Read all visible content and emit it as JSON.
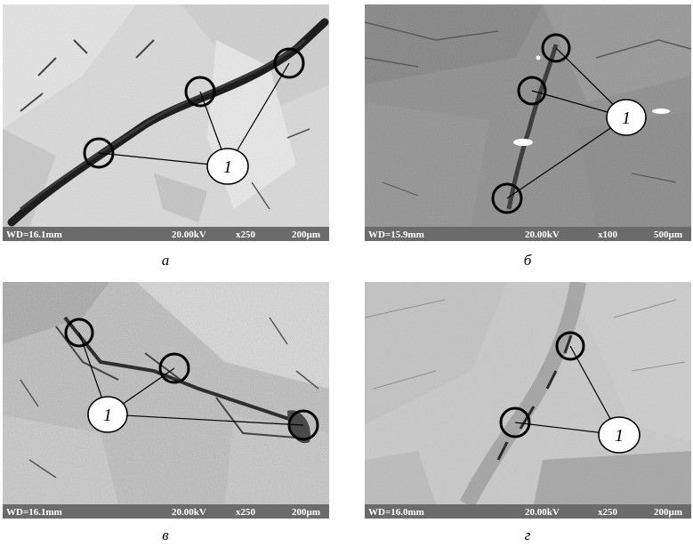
{
  "panels": [
    {
      "id": "a",
      "caption": "а",
      "marker_label": "1",
      "wd": "WD=16.1mm",
      "kv": "20.00kV",
      "mag": "x250",
      "scale": "200µm"
    },
    {
      "id": "b",
      "caption": "б",
      "marker_label": "1",
      "wd": "WD=15.9mm",
      "kv": "20.00kV",
      "mag": "x100",
      "scale": "500µm"
    },
    {
      "id": "v",
      "caption": "в",
      "marker_label": "1",
      "wd": "WD=16.1mm",
      "kv": "20.00kV",
      "mag": "x250",
      "scale": "200µm"
    },
    {
      "id": "g",
      "caption": "г",
      "marker_label": "1",
      "wd": "WD=16.0mm",
      "kv": "20.00kV",
      "mag": "x250",
      "scale": "200µm"
    }
  ],
  "colors": {
    "info_bar": "#6b6b6b",
    "info_text": "#ffffff",
    "marker_ring": "#000000",
    "label_fill": "#ffffff"
  }
}
